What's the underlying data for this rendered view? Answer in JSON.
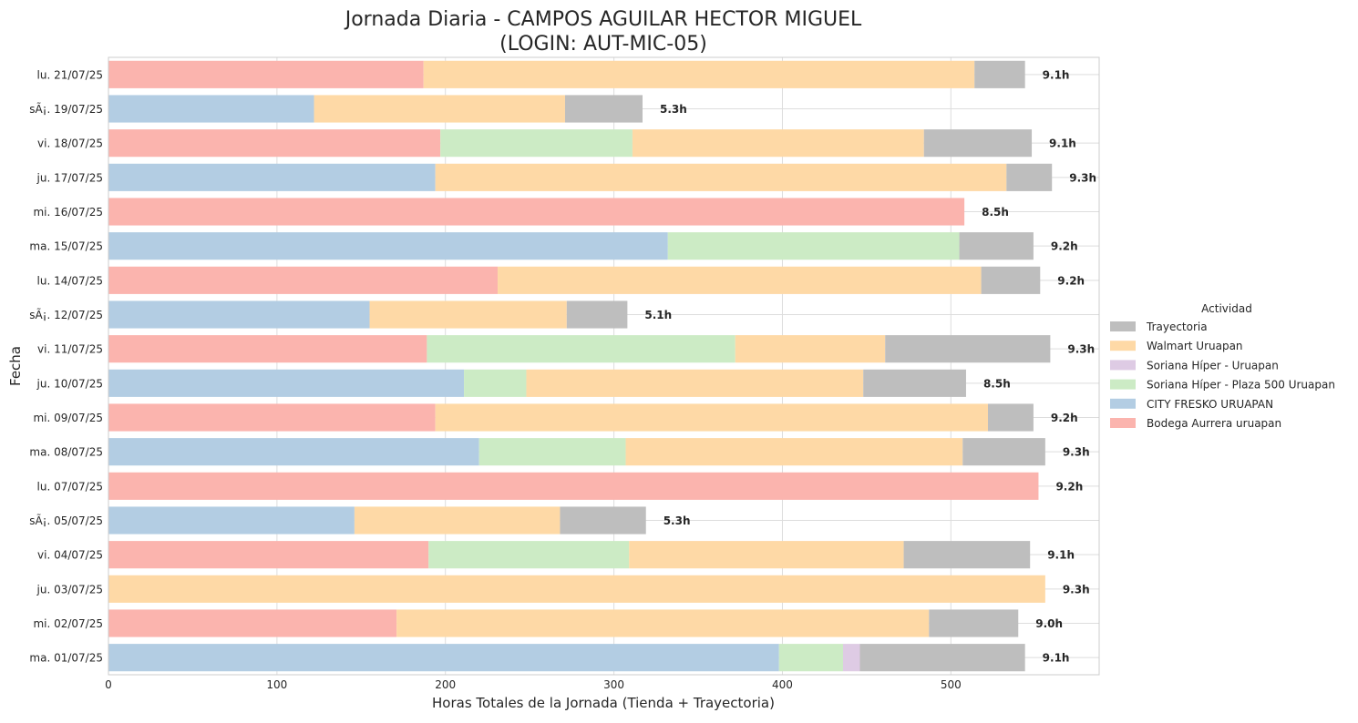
{
  "chart_data": {
    "type": "bar",
    "orientation": "horizontal",
    "stacked": true,
    "title_line1": "Jornada Diaria - CAMPOS AGUILAR HECTOR MIGUEL",
    "title_line2": "(LOGIN: AUT-MIC-05)",
    "xlabel": "Horas Totales de la Jornada (Tienda + Trayectoria)",
    "ylabel": "Fecha",
    "xlim": [
      0,
      588
    ],
    "xticks": [
      0,
      100,
      200,
      300,
      400,
      500
    ],
    "grid": true,
    "legend": {
      "title": "Actividad",
      "placement": "center-right",
      "entries": [
        "Trayectoria",
        "Walmart Uruapan",
        "Soriana Híper - Uruapan",
        "Soriana Híper - Plaza 500 Uruapan",
        "CITY FRESKO URUAPAN",
        "Bodega Aurrera uruapan"
      ]
    },
    "colors": {
      "Trayectoria": "#bebebe",
      "Walmart Uruapan": "#fed9a6",
      "Soriana Híper - Uruapan": "#decbe4",
      "Soriana Híper - Plaza 500 Uruapan": "#ccebc5",
      "CITY FRESKO URUAPAN": "#b3cde3",
      "Bodega Aurrera uruapan": "#fbb4ae"
    },
    "categories": [
      "lu. 21/07/25",
      "sÃ¡. 19/07/25",
      "vi. 18/07/25",
      "ju. 17/07/25",
      "mi. 16/07/25",
      "ma. 15/07/25",
      "lu. 14/07/25",
      "sÃ¡. 12/07/25",
      "vi. 11/07/25",
      "ju. 10/07/25",
      "mi. 09/07/25",
      "ma. 08/07/25",
      "lu. 07/07/25",
      "sÃ¡. 05/07/25",
      "vi. 04/07/25",
      "ju. 03/07/25",
      "mi. 02/07/25",
      "ma. 01/07/25"
    ],
    "series": [
      {
        "name": "Bodega Aurrera uruapan",
        "values": [
          187,
          0,
          197,
          0,
          508,
          0,
          231,
          0,
          189,
          0,
          194,
          0,
          552,
          0,
          190,
          0,
          171,
          0
        ]
      },
      {
        "name": "CITY FRESKO URUAPAN",
        "values": [
          0,
          122,
          0,
          194,
          0,
          332,
          0,
          155,
          0,
          211,
          0,
          220,
          0,
          146,
          0,
          0,
          0,
          398
        ]
      },
      {
        "name": "Soriana Híper - Plaza 500 Uruapan",
        "values": [
          0,
          0,
          114,
          0,
          0,
          173,
          0,
          0,
          183,
          37,
          0,
          87,
          0,
          0,
          119,
          0,
          0,
          38
        ]
      },
      {
        "name": "Soriana Híper - Uruapan",
        "values": [
          0,
          0,
          0,
          0,
          0,
          0,
          0,
          0,
          0,
          0,
          0,
          0,
          0,
          0,
          0,
          0,
          0,
          10
        ]
      },
      {
        "name": "Walmart Uruapan",
        "values": [
          327,
          149,
          173,
          339,
          0,
          0,
          287,
          117,
          89,
          200,
          328,
          200,
          0,
          122,
          163,
          556,
          316,
          0
        ]
      },
      {
        "name": "Trayectoria",
        "values": [
          30,
          46,
          64,
          27,
          0,
          44,
          35,
          36,
          98,
          61,
          27,
          49,
          0,
          51,
          75,
          0,
          53,
          98
        ]
      }
    ],
    "total_labels": [
      "9.1h",
      "5.3h",
      "9.1h",
      "9.3h",
      "8.5h",
      "9.2h",
      "9.2h",
      "5.1h",
      "9.3h",
      "8.5h",
      "9.2h",
      "9.3h",
      "9.2h",
      "5.3h",
      "9.1h",
      "9.3h",
      "9.0h",
      "9.1h"
    ]
  }
}
